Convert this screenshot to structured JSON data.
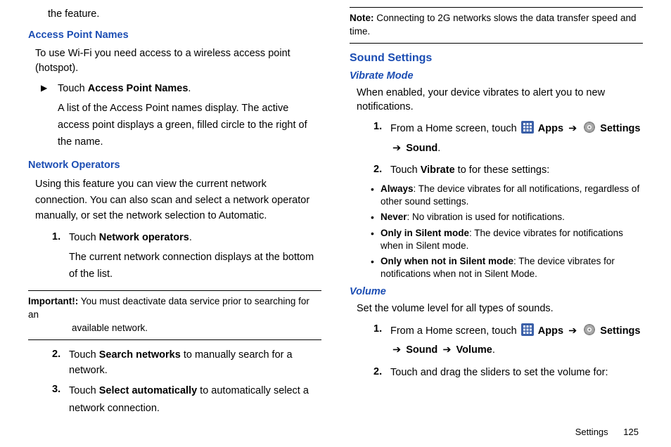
{
  "leftCol": {
    "line0": "the feature.",
    "apn": {
      "heading": "Access Point Names",
      "intro": "To use Wi-Fi you need access to a wireless access point (hotspot).",
      "step1_prefix": "Touch ",
      "step1_bold": "Access Point Names",
      "step1_suffix": ".",
      "step1_sub": "A list of the Access Point names display. The active access point displays a green, filled circle to the right of the name."
    },
    "netop": {
      "heading": "Network Operators",
      "intro": "Using this feature you can view the current network connection. You can also scan and select a network operator manually, or set the network selection to Automatic.",
      "s1_pre": "Touch ",
      "s1_bold": "Network operators",
      "s1_suf": ".",
      "s1_sub": "The current network connection displays at the bottom of the list.",
      "note_label": "Important!:",
      "note_body": " You must deactivate data service prior to searching for an available network.",
      "s2_pre": "Touch ",
      "s2_bold": "Search networks",
      "s2_suf": " to manually search for a network.",
      "s3_pre": "Touch ",
      "s3_bold": "Select automatically",
      "s3_suf": " to automatically select a network connection."
    }
  },
  "rightCol": {
    "note_label": "Note:",
    "note_body": " Connecting to 2G networks slows the data transfer speed and time.",
    "sound": {
      "heading": "Sound Settings",
      "vibrate": {
        "heading": "Vibrate Mode",
        "intro": "When enabled, your device vibrates to alert you to new notifications.",
        "s1_pre": "From a Home screen, touch ",
        "apps_label": "Apps",
        "arrow": "➔",
        "settings_label": "Settings",
        "sound_label": "Sound",
        "s2_pre": "Touch ",
        "s2_bold": "Vibrate",
        "s2_suf": " to for these settings:",
        "bullets": [
          {
            "label": "Always",
            "text": ": The device vibrates for all notifications, regardless of other sound settings."
          },
          {
            "label": "Never",
            "text": ": No vibration is used for notifications."
          },
          {
            "label": "Only in Silent mode",
            "text": ": The device vibrates for notifications when in Silent mode."
          },
          {
            "label": "Only when not in Silent mode",
            "text": ": The device vibrates for notifications when not in Silent Mode."
          }
        ]
      },
      "volume": {
        "heading": "Volume",
        "intro": "Set the volume level for all types of sounds.",
        "s1_pre": "From a Home screen, touch ",
        "volume_label": "Volume",
        "s2": "Touch and drag the sliders to set the volume for:"
      }
    }
  },
  "footer": {
    "section": "Settings",
    "page": "125"
  },
  "markers": {
    "n1": "1.",
    "n2": "2.",
    "n3": "3."
  }
}
